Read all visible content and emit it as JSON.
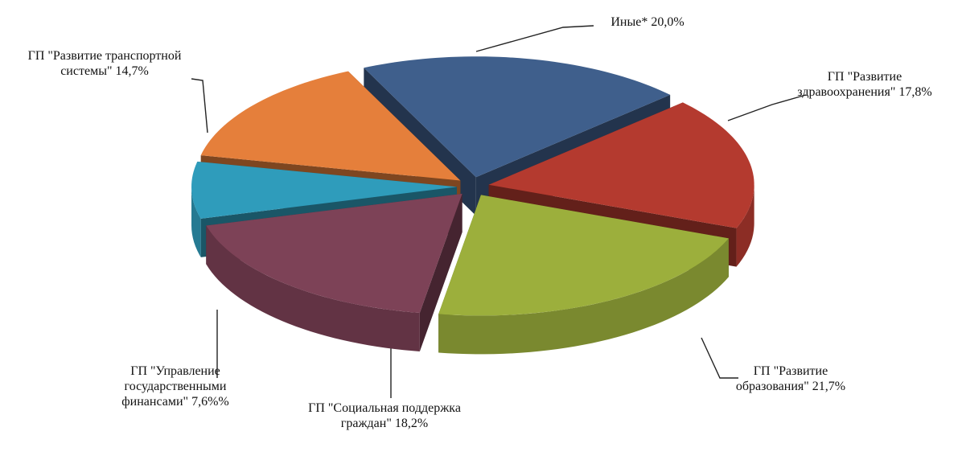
{
  "chart_data": {
    "type": "pie",
    "categories": [
      "Иные*",
      "ГП \"Развитие здравоохранения\"",
      "ГП \"Развитие образования\"",
      "ГП \"Социальная поддержка граждан\"",
      "ГП \"Управление государственными финансами\"",
      "ГП \"Развитие транспортной системы\""
    ],
    "values": [
      20.0,
      17.8,
      21.7,
      18.2,
      7.6,
      14.7
    ],
    "value_labels": [
      "20,0%",
      "17,8%",
      "21,7%",
      "18,2%",
      "7,6%%",
      "14,7%"
    ],
    "colors": [
      "#3f5f8c",
      "#b43a2f",
      "#9caf3c",
      "#7d4257",
      "#2f9cbb",
      "#e57f3b"
    ]
  }
}
